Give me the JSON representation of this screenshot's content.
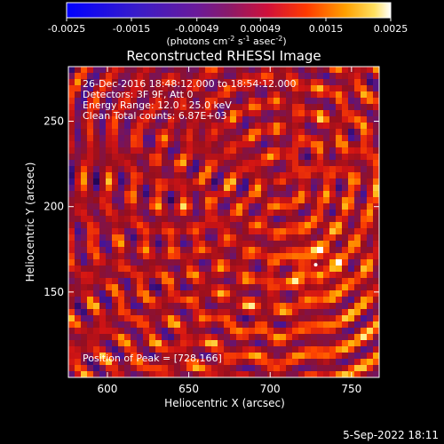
{
  "chart_data": {
    "type": "heatmap",
    "title": "Reconstructed RHESSI Image",
    "xlabel": "Heliocentric X (arcsec)",
    "ylabel": "Heliocentric Y (arcsec)",
    "xlim": [
      576,
      767
    ],
    "ylim": [
      100,
      282
    ],
    "x_ticks": [
      600,
      650,
      700,
      750
    ],
    "y_ticks": [
      150,
      200,
      250
    ],
    "colorbar": {
      "ticks": [
        "-0.0025",
        "-0.0015",
        "-0.00049",
        "0.00049",
        "0.0015",
        "0.0025"
      ],
      "range": [
        -0.0025,
        0.0025
      ],
      "unit_label": "(photons cm",
      "unit_sup1": "-2",
      "unit_mid": " s",
      "unit_sup2": "-1",
      "unit_mid2": " asec",
      "unit_sup3": "-2",
      "unit_end": ")"
    },
    "annotations": [
      "26-Dec-2016 18:48:12.000 to 18:54:12.000",
      "Detectors: 3F 9F, Att 0",
      "Energy Range: 12.0 - 25.0 keV",
      "Clean     Total counts: 6.87E+03"
    ],
    "peak_label": "Position of Peak = [728,166]",
    "peak_position": [
      728,
      166
    ],
    "timestamp": "5-Sep-2022 18:11"
  }
}
